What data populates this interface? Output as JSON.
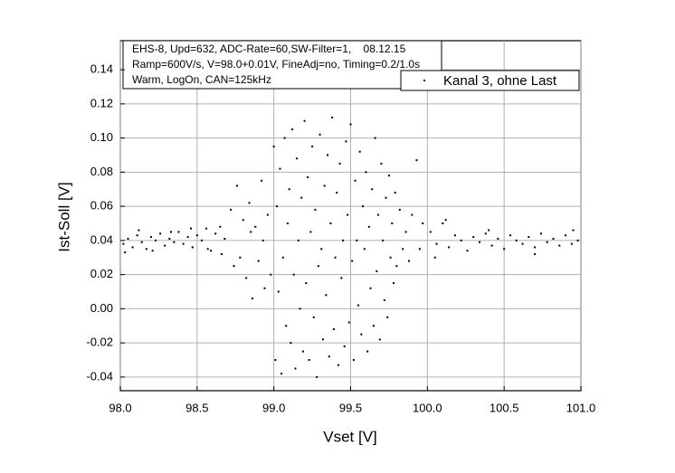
{
  "chart_data": {
    "type": "scatter",
    "annotation": [
      "EHS-8, Upd=632, ADC-Rate=60,SW-Filter=1,    08.12.15",
      "Ramp=600V/s, V=98.0+0.01V, FineAdj=no, Timing=0.2/1.0s",
      "Warm, LogOn, CAN=125kHz"
    ],
    "x_label": "Vset [V]",
    "y_label": "Ist-Soll [V]",
    "xlim": [
      98.0,
      101.0
    ],
    "ylim": [
      -0.048,
      0.157
    ],
    "xticks": [
      {
        "value": 98.0,
        "label": "98.0"
      },
      {
        "value": 98.5,
        "label": "98.5"
      },
      {
        "value": 99.0,
        "label": "99.0"
      },
      {
        "value": 99.5,
        "label": "99.5"
      },
      {
        "value": 100.0,
        "label": "100.0"
      },
      {
        "value": 100.5,
        "label": "100.5"
      },
      {
        "value": 101.0,
        "label": "101.0"
      }
    ],
    "yticks": [
      -0.04,
      -0.02,
      {
        "value": 0.0,
        "label": "0.00"
      },
      0.02,
      0.04,
      0.06,
      0.08,
      {
        "value": 0.1,
        "label": "0.10"
      },
      0.12,
      0.14
    ],
    "grid": true,
    "legend": "top-right",
    "series": [
      {
        "name": "Kanal 3, ohne Last",
        "color": "#000000",
        "x": [
          98.02,
          98.05,
          98.08,
          98.11,
          98.14,
          98.17,
          98.2,
          98.23,
          98.26,
          98.29,
          98.32,
          98.35,
          98.38,
          98.41,
          98.44,
          98.47,
          98.5,
          98.53,
          98.56,
          98.59,
          98.62,
          98.65,
          98.68,
          98.03,
          98.12,
          98.21,
          98.33,
          98.46,
          98.57,
          98.66,
          98.72,
          98.74,
          98.76,
          98.78,
          98.8,
          98.82,
          98.84,
          98.86,
          98.88,
          98.9,
          98.92,
          98.94,
          98.96,
          98.98,
          98.85,
          98.93,
          99.0,
          99.01,
          99.02,
          99.03,
          99.04,
          99.05,
          99.06,
          99.07,
          99.08,
          99.09,
          99.1,
          99.11,
          99.12,
          99.13,
          99.14,
          99.15,
          99.16,
          99.17,
          99.18,
          99.19,
          99.2,
          99.21,
          99.22,
          99.23,
          99.24,
          99.25,
          99.26,
          99.27,
          99.28,
          99.29,
          99.3,
          99.31,
          99.32,
          99.33,
          99.34,
          99.35,
          99.36,
          99.37,
          99.38,
          99.39,
          99.4,
          99.41,
          99.42,
          99.43,
          99.44,
          99.45,
          99.46,
          99.47,
          99.48,
          99.49,
          99.5,
          99.51,
          99.52,
          99.53,
          99.54,
          99.55,
          99.56,
          99.57,
          99.58,
          99.59,
          99.6,
          99.61,
          99.62,
          99.63,
          99.64,
          99.65,
          99.66,
          99.67,
          99.68,
          99.69,
          99.7,
          99.71,
          99.72,
          99.73,
          99.74,
          99.75,
          99.76,
          99.77,
          99.78,
          99.79,
          99.8,
          99.82,
          99.84,
          99.86,
          99.88,
          99.9,
          99.93,
          99.95,
          99.97,
          100.02,
          100.06,
          100.1,
          100.14,
          100.18,
          100.22,
          100.26,
          100.3,
          100.34,
          100.38,
          100.42,
          100.46,
          100.5,
          100.54,
          100.58,
          100.62,
          100.66,
          100.7,
          100.74,
          100.78,
          100.82,
          100.86,
          100.9,
          100.94,
          100.98,
          100.05,
          100.12,
          100.4,
          100.7,
          100.95
        ],
        "values": [
          0.038,
          0.041,
          0.036,
          0.043,
          0.039,
          0.035,
          0.042,
          0.04,
          0.044,
          0.037,
          0.041,
          0.039,
          0.045,
          0.038,
          0.042,
          0.036,
          0.043,
          0.04,
          0.047,
          0.034,
          0.044,
          0.048,
          0.041,
          0.033,
          0.046,
          0.034,
          0.045,
          0.047,
          0.035,
          0.032,
          0.058,
          0.025,
          0.072,
          0.03,
          0.052,
          0.018,
          0.062,
          0.006,
          0.048,
          0.028,
          0.075,
          0.012,
          0.055,
          0.02,
          0.045,
          0.04,
          0.095,
          -0.03,
          0.06,
          0.01,
          0.082,
          -0.038,
          0.03,
          0.1,
          -0.01,
          0.05,
          0.07,
          -0.02,
          0.105,
          0.02,
          -0.035,
          0.088,
          0.04,
          0.0,
          0.065,
          -0.025,
          0.11,
          0.015,
          0.077,
          -0.03,
          0.045,
          0.095,
          -0.005,
          0.058,
          -0.04,
          0.025,
          0.102,
          0.035,
          -0.018,
          0.072,
          0.008,
          0.09,
          -0.028,
          0.05,
          0.112,
          -0.012,
          0.03,
          0.068,
          -0.033,
          0.085,
          0.018,
          0.04,
          -0.022,
          0.098,
          0.055,
          -0.008,
          0.108,
          0.028,
          -0.03,
          0.075,
          0.04,
          0.002,
          0.092,
          -0.015,
          0.06,
          0.035,
          0.08,
          -0.025,
          0.048,
          0.012,
          0.07,
          -0.01,
          0.1,
          0.022,
          0.055,
          -0.018,
          0.085,
          0.04,
          0.005,
          0.065,
          -0.005,
          0.078,
          0.03,
          0.05,
          0.015,
          0.068,
          0.025,
          0.058,
          0.035,
          0.045,
          0.028,
          0.055,
          0.087,
          0.035,
          0.05,
          0.045,
          0.038,
          0.05,
          0.036,
          0.043,
          0.04,
          0.034,
          0.042,
          0.039,
          0.044,
          0.037,
          0.041,
          0.035,
          0.043,
          0.04,
          0.038,
          0.042,
          0.036,
          0.044,
          0.039,
          0.041,
          0.037,
          0.043,
          0.038,
          0.04,
          0.03,
          0.052,
          0.046,
          0.032,
          0.046
        ]
      }
    ]
  }
}
